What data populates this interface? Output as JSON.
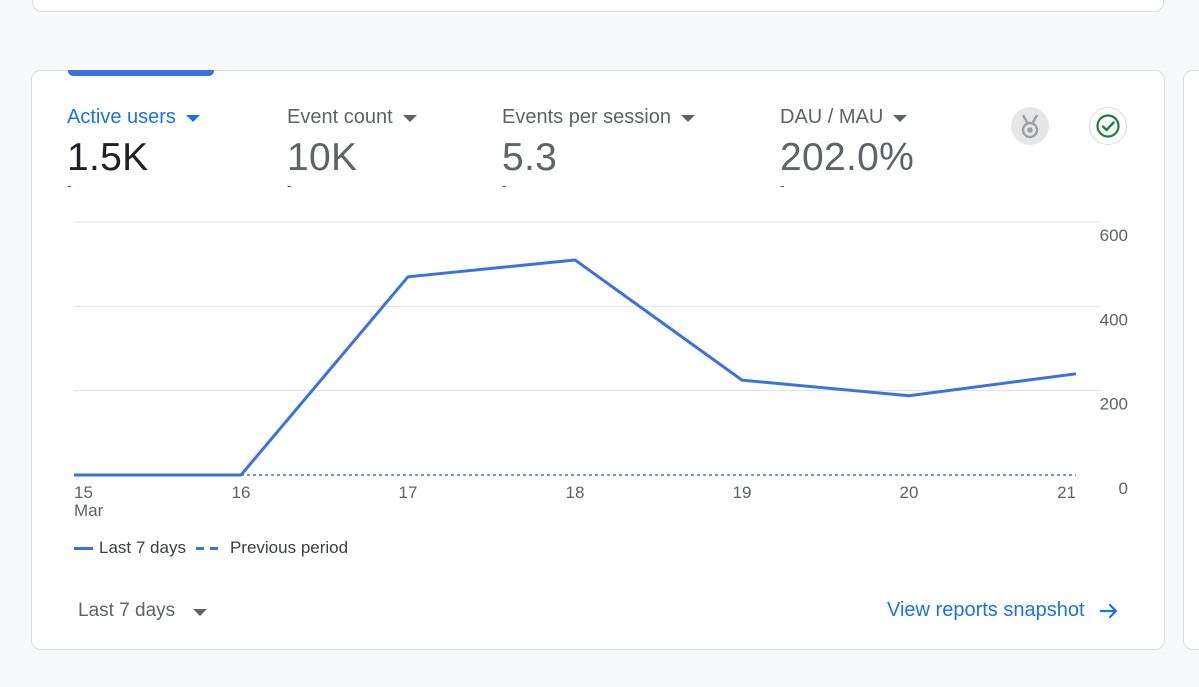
{
  "metrics": [
    {
      "label": "Active users",
      "value": "1.5K",
      "change": "-",
      "active": true
    },
    {
      "label": "Event count",
      "value": "10K",
      "change": "-",
      "active": false
    },
    {
      "label": "Events per session",
      "value": "5.3",
      "change": "-",
      "active": false
    },
    {
      "label": "DAU / MAU",
      "value": "202.0%",
      "change": "-",
      "active": false
    }
  ],
  "icons": {
    "insights": "medal-icon",
    "status": "check-circle-icon"
  },
  "colors": {
    "accent": "#1a73e8",
    "series": "#3b73dc",
    "grid": "#e0e0e0",
    "check": "#188038"
  },
  "chart_data": {
    "type": "line",
    "title": "",
    "x": [
      "15",
      "16",
      "17",
      "18",
      "19",
      "20",
      "21"
    ],
    "x_sublabel_first": "Mar",
    "series": [
      {
        "name": "Last 7 days",
        "style": "solid",
        "values": [
          0,
          0,
          470,
          510,
          225,
          188,
          240
        ]
      },
      {
        "name": "Previous period",
        "style": "dashed",
        "values": [
          null,
          0,
          0,
          0,
          0,
          0,
          0
        ]
      }
    ],
    "y_ticks": [
      "0",
      "200",
      "400",
      "600"
    ],
    "y_tick_values": [
      0,
      200,
      400,
      600
    ],
    "ylim": [
      0,
      600
    ],
    "y_axis_side": "right",
    "grid": true
  },
  "legend": {
    "current_label": "Last 7 days",
    "previous_label": "Previous period"
  },
  "footer": {
    "range_label": "Last 7 days",
    "link_label": "View reports snapshot"
  }
}
